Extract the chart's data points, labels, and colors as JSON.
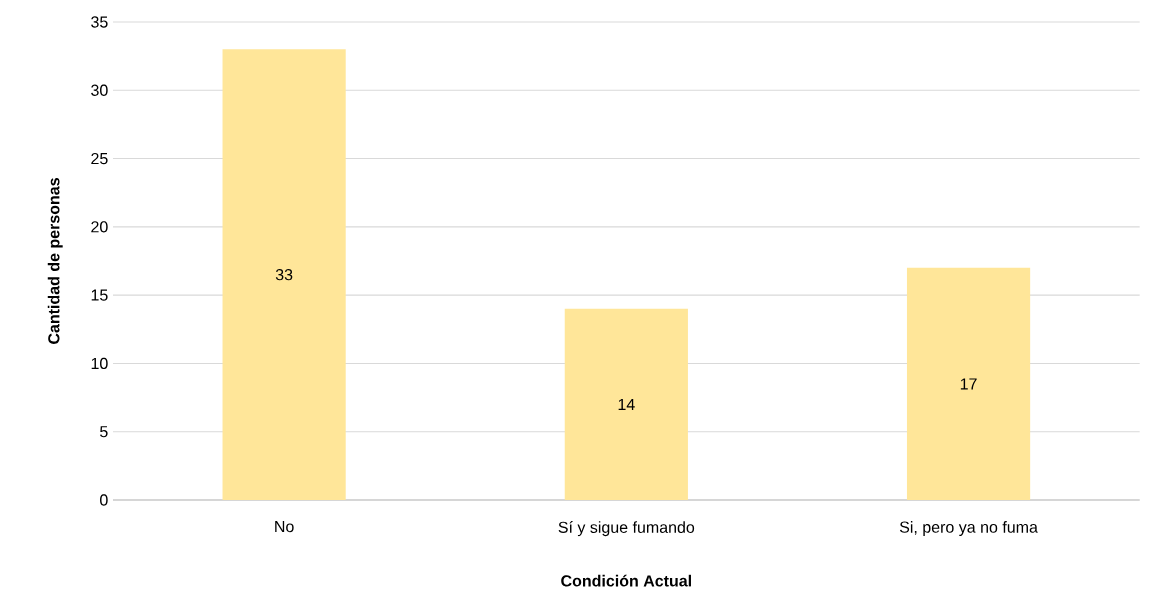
{
  "chart_data": {
    "type": "bar",
    "xlabel": "Condición Actual",
    "ylabel": "Cantidad de personas",
    "categories": [
      "No",
      "Sí y sigue fumando",
      "Si, pero ya no fuma"
    ],
    "values": [
      33,
      14,
      17
    ],
    "color": "#ffe699",
    "ylim": [
      0,
      35
    ],
    "yticks": [
      0,
      5,
      10,
      15,
      20,
      25,
      30,
      35
    ],
    "grid": "y",
    "data_labels": true
  }
}
